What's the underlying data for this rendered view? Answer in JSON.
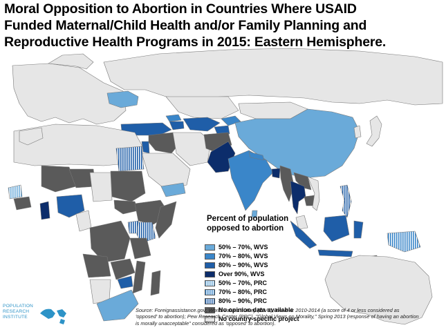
{
  "title": {
    "line1": "Moral Opposition to Abortion in Countries Where USAID",
    "line2": "Funded Maternal/Child Health and/or Family Planning and",
    "line3": "Reproductive Health Programs in 2015: Eastern Hemisphere."
  },
  "legend": {
    "title_line1": "Percent of population",
    "title_line2": "opposed to abortion",
    "items": [
      {
        "label": "50% – 70%, WVS",
        "color": "#6aaad9",
        "pattern": "solid"
      },
      {
        "label": "70% – 80%, WVS",
        "color": "#3a86c9",
        "pattern": "solid"
      },
      {
        "label": "80% – 90%, WVS",
        "color": "#1f5ea8",
        "pattern": "solid"
      },
      {
        "label": "Over 90%, WVS",
        "color": "#0c2d6b",
        "pattern": "solid"
      },
      {
        "label": "50% – 70%, PRC",
        "color": "#6aaad9",
        "pattern": "hatched"
      },
      {
        "label": "70% – 80%, PRC",
        "color": "#3a86c9",
        "pattern": "hatched"
      },
      {
        "label": "80% – 90%, PRC",
        "color": "#1f5ea8",
        "pattern": "hatched"
      },
      {
        "label": "No opinion data available",
        "color": "#5a5a5a",
        "pattern": "solid"
      },
      {
        "label": "No country-specific project",
        "color": "#e6e6e6",
        "pattern": "solid"
      }
    ]
  },
  "colors": {
    "ocean": "#ffffff",
    "land_border": "#777777",
    "no_project": "#e6e6e6",
    "no_data": "#5a5a5a"
  },
  "source": {
    "line1": "Source: Foreignassistance.gov; World Values Survey (WVS), Wave 6: 2010-2014 (a score of 4 or less considered as",
    "line2": "'opposed' to abortion); Pew Research Center (PRC), \"Global Views on Morality,\" Spring 2013 (response of having an abortion",
    "line3": "is morally unacceptable\" considered as 'opposed' to abortion)."
  },
  "logo": {
    "line1": "POPULATION",
    "line2": "RESEARCH",
    "line3": "INSTITUTE",
    "icon": "globe-map-icon"
  }
}
